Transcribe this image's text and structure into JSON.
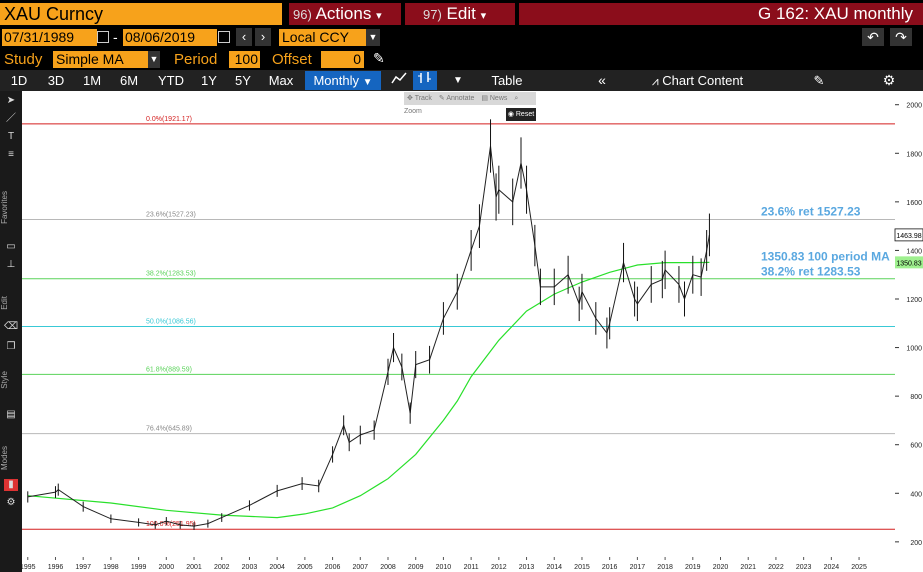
{
  "header": {
    "ticker": "XAU Curncy",
    "actions_num": "96)",
    "actions_label": "Actions",
    "edit_num": "97)",
    "edit_label": "Edit",
    "title": "G 162: XAU monthly"
  },
  "range": {
    "start": "07/31/1989",
    "dash": "-",
    "end": "08/06/2019",
    "currency": "Local CCY"
  },
  "study": {
    "label": "Study",
    "type": "Simple MA",
    "period_label": "Period",
    "period": "100",
    "offset_label": "Offset",
    "offset": "0"
  },
  "toolbar": {
    "periods": [
      "1D",
      "3D",
      "1M",
      "6M",
      "YTD",
      "1Y",
      "5Y",
      "Max"
    ],
    "frequency": "Monthly",
    "table_label": "Table",
    "chart_content_label": "Chart Content"
  },
  "tooltips": {
    "track": "Track",
    "annotate": "Annotate",
    "news": "News",
    "zoom": "Zoom",
    "reset": "Reset"
  },
  "side_labels": [
    "Favorites",
    "Edit",
    "Style",
    "Modes"
  ],
  "colors": {
    "orange": "#f7a21b",
    "dark_red": "#8b0d1b",
    "price": "#ffffff",
    "ma": "#29e02b",
    "fib_line": "#5ad35a",
    "fib_50": "#39c9d6",
    "fib_extreme": "#d41f1f",
    "annotation": "#5aa8e0",
    "price_tag_bg": "#ffffff",
    "ma_tag_bg": "#9ff08f"
  },
  "chart_data": {
    "type": "line",
    "title": "G 162: XAU monthly",
    "xlabel": "",
    "ylabel": "",
    "x_ticks": [
      "1995",
      "1996",
      "1997",
      "1998",
      "1999",
      "2000",
      "2001",
      "2002",
      "2003",
      "2004",
      "2005",
      "2006",
      "2007",
      "2008",
      "2009",
      "2010",
      "2011",
      "2012",
      "2013",
      "2014",
      "2015",
      "2016",
      "2017",
      "2018",
      "2019",
      "2020",
      "2021",
      "2022",
      "2023",
      "2024",
      "2025"
    ],
    "y_ticks": [
      200,
      400,
      600,
      800,
      1000,
      1200,
      1400,
      1600,
      1800,
      2000
    ],
    "ylim": [
      150,
      2040
    ],
    "xlim": [
      1994.9,
      2025.9
    ],
    "grid": false,
    "series": [
      {
        "style": "high-low bars",
        "x": [
          1995.0,
          1996.0,
          1996.1,
          1997.0,
          1998.0,
          1999.0,
          1999.6,
          2000.0,
          2000.5,
          2001.0,
          2001.5,
          2002.0,
          2003.0,
          2004.0,
          2004.9,
          2005.5,
          2006.0,
          2006.4,
          2006.6,
          2007.0,
          2007.5,
          2008.0,
          2008.2,
          2008.5,
          2008.8,
          2009.0,
          2009.5,
          2010.0,
          2010.5,
          2011.0,
          2011.3,
          2011.7,
          2011.9,
          2012.0,
          2012.5,
          2012.8,
          2013.0,
          2013.3,
          2013.5,
          2014.0,
          2014.5,
          2014.9,
          2015.0,
          2015.5,
          2015.9,
          2016.0,
          2016.5,
          2016.9,
          2017.0,
          2017.5,
          2017.9,
          2018.0,
          2018.5,
          2018.7,
          2019.0,
          2019.3,
          2019.5,
          2019.6
        ],
        "y": [
          385,
          405,
          415,
          345,
          295,
          280,
          270,
          285,
          270,
          265,
          275,
          300,
          350,
          410,
          440,
          430,
          560,
          680,
          610,
          640,
          660,
          900,
          1000,
          920,
          730,
          930,
          950,
          1120,
          1230,
          1400,
          1500,
          1830,
          1620,
          1650,
          1600,
          1760,
          1650,
          1420,
          1250,
          1250,
          1300,
          1180,
          1230,
          1120,
          1060,
          1100,
          1350,
          1200,
          1180,
          1260,
          1280,
          1320,
          1260,
          1200,
          1300,
          1290,
          1400,
          1464
        ]
      },
      {
        "name": "100 period MA",
        "x": [
          1995.0,
          1998.0,
          2000.0,
          2002.0,
          2004.0,
          2005.0,
          2006.0,
          2007.0,
          2008.0,
          2009.0,
          2010.0,
          2010.5,
          2011.0,
          2012.0,
          2013.0,
          2014.0,
          2015.0,
          2016.0,
          2017.0,
          2018.0,
          2019.0,
          2019.6
        ],
        "y": [
          390,
          360,
          330,
          310,
          300,
          315,
          340,
          390,
          460,
          560,
          700,
          780,
          880,
          1030,
          1150,
          1220,
          1270,
          1310,
          1340,
          1350,
          1350,
          1350.83
        ]
      }
    ],
    "fib_levels": [
      {
        "label": "0.0%(1921.17)",
        "value": 1921.17
      },
      {
        "label": "23.6%(1527.23)",
        "value": 1527.23
      },
      {
        "label": "38.2%(1283.53)",
        "value": 1283.53
      },
      {
        "label": "50.0%(1086.56)",
        "value": 1086.56
      },
      {
        "label": "61.8%(889.59)",
        "value": 889.59
      },
      {
        "label": "76.4%(645.89)",
        "value": 645.89
      },
      {
        "label": "100.0%(251.95)",
        "value": 251.95
      }
    ],
    "annotations": [
      {
        "text": "23.6% ret 1527.23",
        "value": 1527.23
      },
      {
        "text": "1350.83 100 period MA",
        "value": 1350.83
      },
      {
        "text": "38.2% ret 1283.53",
        "value": 1283.53
      }
    ],
    "last_price": "1463.98",
    "last_ma": "1350.83"
  }
}
